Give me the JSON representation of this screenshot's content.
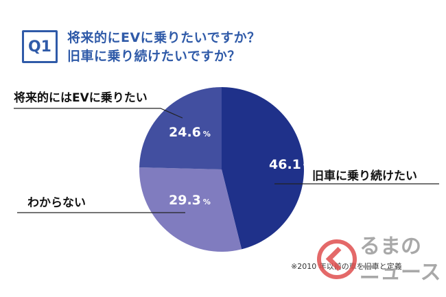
{
  "header": {
    "badge": "Q1",
    "title_line1": "将来的にEVに乗りたいですか？",
    "title_line2": "旧車に乗り続けたいですか？"
  },
  "footnote": "※2010 年以前の車を旧車と定義",
  "watermark": {
    "line1": "るまの",
    "line2": "ニュース"
  },
  "colors": {
    "accent": "#2f5aa8",
    "slice_keep_old": "#1f318a",
    "slice_ev": "#424fa0",
    "slice_unknown": "#807cbf"
  },
  "chart_data": {
    "type": "pie",
    "unit": "%",
    "slices": [
      {
        "label": "旧車に乗り続けたい",
        "value": 46.1,
        "color": "#1f318a"
      },
      {
        "label": "わからない",
        "value": 29.3,
        "color": "#807cbf"
      },
      {
        "label": "将来的にはEVに乗りたい",
        "value": 24.6,
        "color": "#424fa0"
      }
    ]
  }
}
